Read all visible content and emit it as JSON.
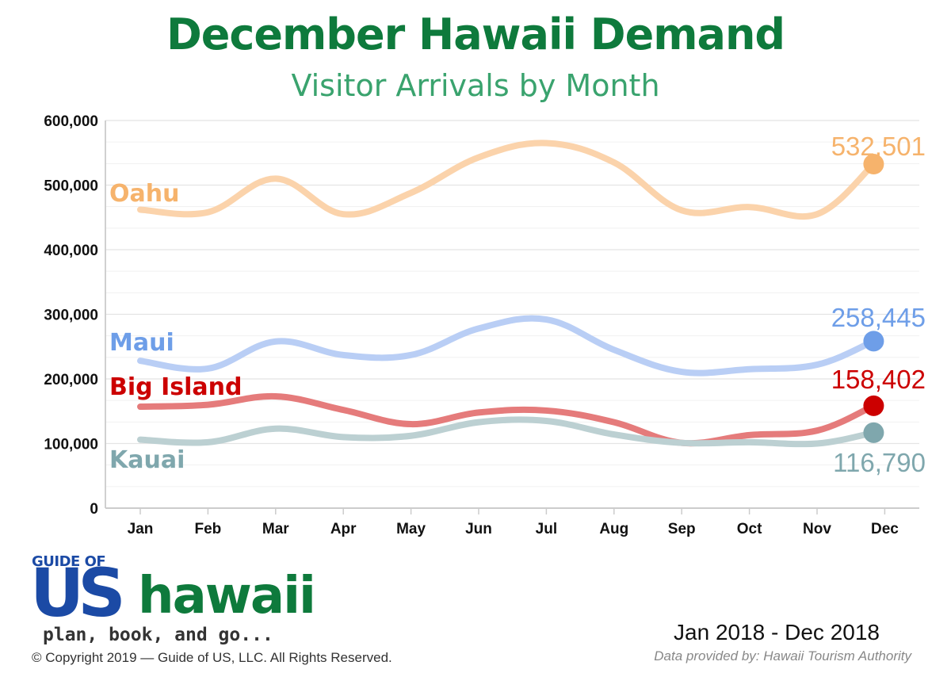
{
  "header": {
    "title": "December Hawaii Demand",
    "subtitle": "Visitor Arrivals by Month"
  },
  "chart_data": {
    "type": "line",
    "title": "December Hawaii Demand",
    "subtitle": "Visitor Arrivals by Month",
    "xlabel": "",
    "ylabel": "",
    "categories": [
      "Jan",
      "Feb",
      "Mar",
      "Apr",
      "May",
      "Jun",
      "Jul",
      "Aug",
      "Sep",
      "Oct",
      "Nov",
      "Dec"
    ],
    "ylim": [
      0,
      600000
    ],
    "yticks": [
      0,
      100000,
      200000,
      300000,
      400000,
      500000,
      600000
    ],
    "ytick_labels": [
      "0",
      "100,000",
      "200,000",
      "300,000",
      "400,000",
      "500,000",
      "600,000"
    ],
    "grid": true,
    "legend": "inline labels at left of each line",
    "series": [
      {
        "name": "Oahu",
        "color": "#f6b36c",
        "line_color": "#fbd3ab",
        "values": [
          462000,
          458000,
          510000,
          455000,
          488000,
          543000,
          565000,
          535000,
          461000,
          466000,
          455000,
          532501
        ],
        "end_label": "532,501"
      },
      {
        "name": "Maui",
        "color": "#6e9ee8",
        "line_color": "#b9cef5",
        "values": [
          228000,
          216000,
          258000,
          237000,
          237000,
          278000,
          292000,
          245000,
          211000,
          215000,
          222000,
          258445
        ],
        "end_label": "258,445"
      },
      {
        "name": "Big Island",
        "color": "#cc0000",
        "line_color": "#e57b7b",
        "values": [
          157000,
          160000,
          173000,
          152000,
          130000,
          148000,
          151000,
          133000,
          101000,
          113000,
          120000,
          158402
        ],
        "end_label": "158,402"
      },
      {
        "name": "Kauai",
        "color": "#7fa7ad",
        "line_color": "#bcd0d2",
        "values": [
          106000,
          102000,
          123000,
          110000,
          112000,
          133000,
          135000,
          114000,
          101000,
          102000,
          100000,
          116790
        ],
        "end_label": "116,790"
      }
    ]
  },
  "branding": {
    "logo_top": "GUIDE OF",
    "logo_us": "US",
    "logo_hawaii": "hawaii",
    "logo_tagline": "plan, book, and go...",
    "copyright": "© Copyright 2019 — Guide of US, LLC. All Rights Reserved."
  },
  "footer": {
    "date_range": "Jan 2018 - Dec 2018",
    "source": "Data provided by: Hawaii Tourism Authority"
  }
}
